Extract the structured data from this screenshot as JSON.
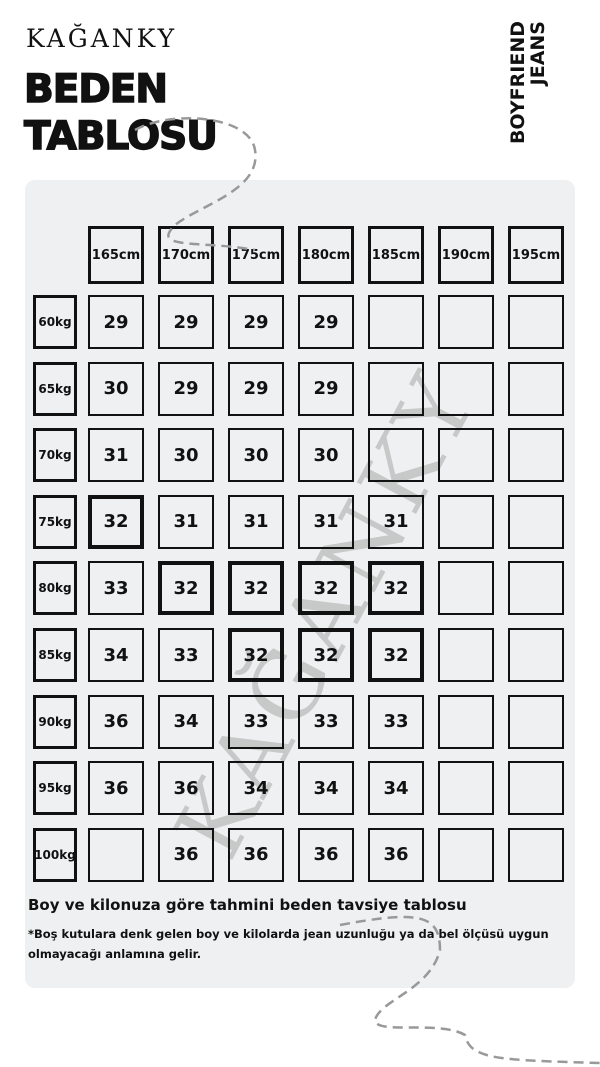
{
  "brand": "KAĞANKY",
  "title": {
    "line1": "BEDEN",
    "line2": "TABLOSU"
  },
  "product": {
    "line1": "BOYFRIEND",
    "line2": "JEANS"
  },
  "heights": [
    "165cm",
    "170cm",
    "175cm",
    "180cm",
    "185cm",
    "190cm",
    "195cm"
  ],
  "rows": [
    {
      "weight": "60kg",
      "sizes": [
        "29",
        "29",
        "29",
        "29",
        "",
        "",
        ""
      ]
    },
    {
      "weight": "65kg",
      "sizes": [
        "30",
        "29",
        "29",
        "29",
        "",
        "",
        ""
      ]
    },
    {
      "weight": "70kg",
      "sizes": [
        "31",
        "30",
        "30",
        "30",
        "",
        "",
        ""
      ]
    },
    {
      "weight": "75kg",
      "sizes": [
        "32",
        "31",
        "31",
        "31",
        "31",
        "",
        ""
      ]
    },
    {
      "weight": "80kg",
      "sizes": [
        "33",
        "32",
        "32",
        "32",
        "32",
        "",
        ""
      ]
    },
    {
      "weight": "85kg",
      "sizes": [
        "34",
        "33",
        "32",
        "32",
        "32",
        "",
        ""
      ]
    },
    {
      "weight": "90kg",
      "sizes": [
        "36",
        "34",
        "33",
        "33",
        "33",
        "",
        ""
      ]
    },
    {
      "weight": "95kg",
      "sizes": [
        "36",
        "36",
        "34",
        "34",
        "34",
        "",
        ""
      ]
    },
    {
      "weight": "100kg",
      "sizes": [
        "",
        "36",
        "36",
        "36",
        "36",
        "",
        ""
      ]
    }
  ],
  "highlighted": [
    [
      3,
      0
    ],
    [
      4,
      1
    ],
    [
      4,
      2
    ],
    [
      4,
      3
    ],
    [
      4,
      4
    ],
    [
      5,
      2
    ],
    [
      5,
      3
    ],
    [
      5,
      4
    ]
  ],
  "caption": "Boy ve kilonuza göre tahmini beden tavsiye tablosu",
  "footnote": "*Boş kutulara denk gelen boy ve kilolarda jean uzunluğu ya da bel ölçüsü uygun olmayacağı anlamına gelir.",
  "watermark": "KAĞANKY",
  "colors": {
    "panel": "#eef0f1",
    "ink": "#111111",
    "dash": "#999999"
  }
}
